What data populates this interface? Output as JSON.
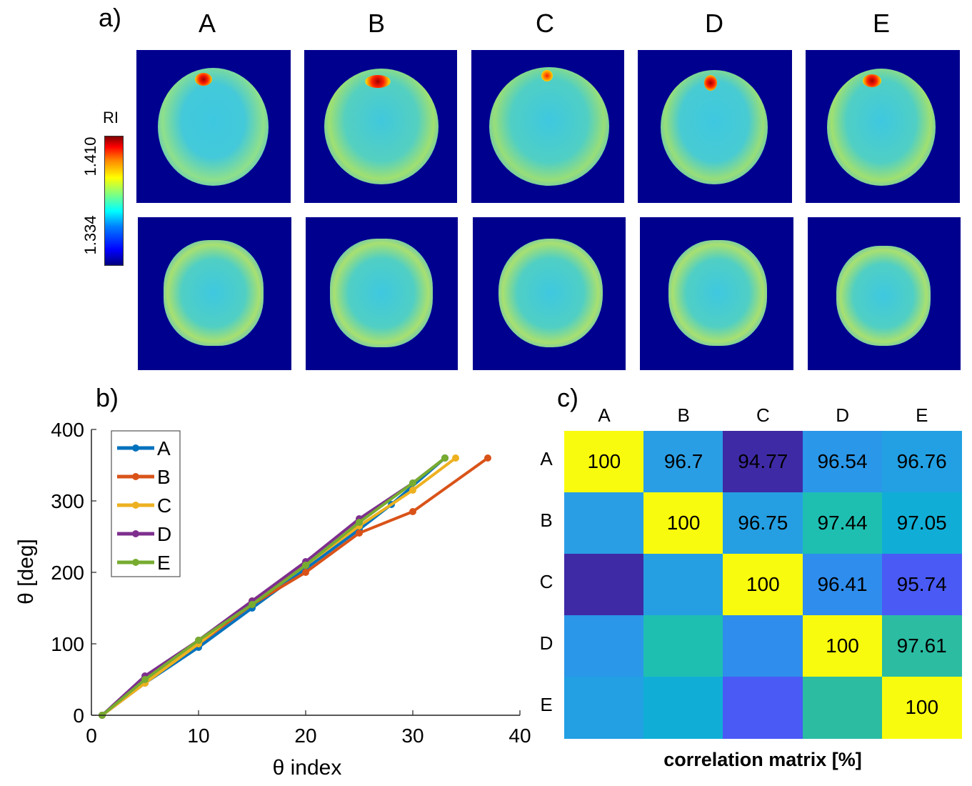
{
  "panel_labels": {
    "a": "a)",
    "b": "b)",
    "c": "c)"
  },
  "panel_a": {
    "columns": [
      "A",
      "B",
      "C",
      "D",
      "E"
    ],
    "colorbar": {
      "title": "RI",
      "max_label": "1.410",
      "min_label": "1.334"
    }
  },
  "chart_data": [
    {
      "type": "line",
      "title": "",
      "xlabel": "θ index",
      "ylabel": "θ [deg]",
      "xlim": [
        0,
        40
      ],
      "ylim": [
        0,
        400
      ],
      "xticks": [
        "0",
        "10",
        "20",
        "30",
        "40"
      ],
      "yticks": [
        "0",
        "100",
        "200",
        "300",
        "400"
      ],
      "legend": [
        "A",
        "B",
        "C",
        "D",
        "E"
      ],
      "series": [
        {
          "name": "A",
          "color": "#0072bd",
          "x": [
            1,
            5,
            10,
            15,
            20,
            25,
            28,
            33
          ],
          "y": [
            0,
            45,
            95,
            150,
            205,
            260,
            295,
            360
          ]
        },
        {
          "name": "B",
          "color": "#d95319",
          "x": [
            1,
            5,
            10,
            15,
            20,
            25,
            30,
            37
          ],
          "y": [
            0,
            45,
            100,
            155,
            200,
            255,
            285,
            360
          ]
        },
        {
          "name": "C",
          "color": "#edb120",
          "x": [
            1,
            5,
            10,
            15,
            20,
            25,
            30,
            34
          ],
          "y": [
            0,
            45,
            100,
            160,
            210,
            265,
            315,
            360
          ]
        },
        {
          "name": "D",
          "color": "#7e2f8e",
          "x": [
            1,
            5,
            10,
            15,
            20,
            25,
            30,
            33
          ],
          "y": [
            0,
            55,
            105,
            160,
            215,
            275,
            325,
            360
          ]
        },
        {
          "name": "E",
          "color": "#77ac30",
          "x": [
            1,
            5,
            10,
            15,
            20,
            25,
            30,
            33
          ],
          "y": [
            0,
            50,
            105,
            155,
            210,
            270,
            325,
            360
          ]
        }
      ]
    },
    {
      "type": "heatmap",
      "title": "correlation matrix [%]",
      "rows": [
        "A",
        "B",
        "C",
        "D",
        "E"
      ],
      "columns": [
        "A",
        "B",
        "C",
        "D",
        "E"
      ],
      "cells": [
        [
          {
            "label": "100",
            "color": "#f9fb0e"
          },
          {
            "label": "96.7",
            "color": "#2a9ee5"
          },
          {
            "label": "94.77",
            "color": "#3f2aa6"
          },
          {
            "label": "96.54",
            "color": "#2a97e9"
          },
          {
            "label": "96.76",
            "color": "#22a0e3"
          }
        ],
        [
          {
            "label": "",
            "color": "#2a9ee5"
          },
          {
            "label": "100",
            "color": "#f9fb0e"
          },
          {
            "label": "96.75",
            "color": "#259fe2"
          },
          {
            "label": "97.44",
            "color": "#1ebfb1"
          },
          {
            "label": "97.05",
            "color": "#10aed6"
          }
        ],
        [
          {
            "label": "",
            "color": "#3f2aa6"
          },
          {
            "label": "",
            "color": "#259fe2"
          },
          {
            "label": "100",
            "color": "#f9fb0e"
          },
          {
            "label": "96.41",
            "color": "#2f8ded"
          },
          {
            "label": "95.74",
            "color": "#4a5af5"
          }
        ],
        [
          {
            "label": "",
            "color": "#2a97e9"
          },
          {
            "label": "",
            "color": "#1ebfb1"
          },
          {
            "label": "",
            "color": "#2f8ded"
          },
          {
            "label": "100",
            "color": "#f9fb0e"
          },
          {
            "label": "97.61",
            "color": "#2bbca2"
          }
        ],
        [
          {
            "label": "",
            "color": "#22a0e3"
          },
          {
            "label": "",
            "color": "#10aed6"
          },
          {
            "label": "",
            "color": "#4a5af5"
          },
          {
            "label": "",
            "color": "#2bbca2"
          },
          {
            "label": "100",
            "color": "#f9fb0e"
          }
        ]
      ]
    }
  ]
}
